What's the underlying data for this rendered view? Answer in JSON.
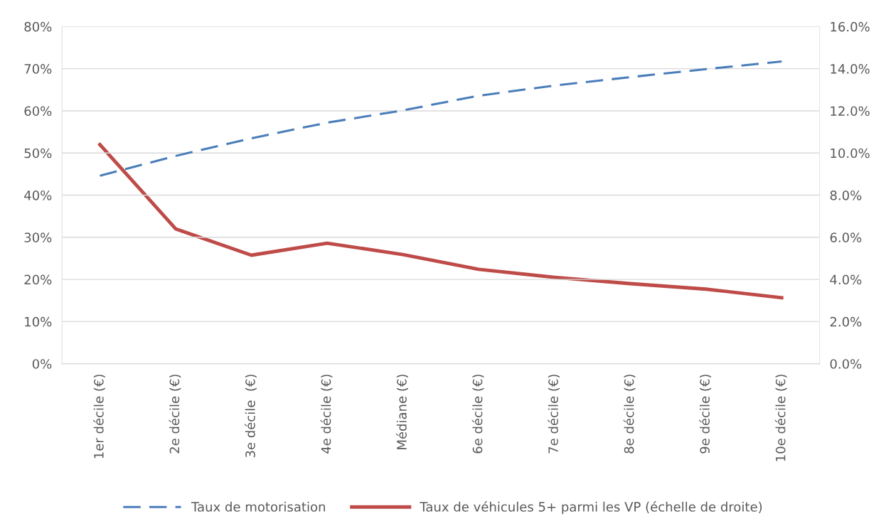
{
  "chart_data": {
    "type": "line",
    "categories": [
      "1er décile (€)",
      "2e décile (€)",
      "3e décile  (€)",
      "4e décile (€)",
      "Médiane (€)",
      "6e décile (€)",
      "7e décile (€)",
      "8e décile (€)",
      "9e décile (€)",
      "10e décile (€)"
    ],
    "series": [
      {
        "name": "Taux de motorisation",
        "color": "#4a7ebb",
        "line_style": "dashed",
        "values": [
          44.6,
          49.3,
          53.5,
          57.2,
          60.1,
          63.6,
          66.0,
          68.0,
          69.9,
          71.7
        ]
      },
      {
        "name": "Taux de véhicules 5+ parmi les VP (échelle de droite)",
        "color": "#be4b48",
        "line_style": "solid",
        "axis": "y2",
        "values": [
          10.4,
          6.4,
          5.15,
          5.72,
          5.18,
          4.48,
          4.1,
          3.8,
          3.54,
          3.13
        ]
      }
    ],
    "ylim": [
      0,
      80
    ],
    "yticks": [
      {
        "value": 0,
        "label": "0%"
      },
      {
        "value": 10,
        "label": "10%"
      },
      {
        "value": 20,
        "label": "20%"
      },
      {
        "value": 30,
        "label": "30%"
      },
      {
        "value": 40,
        "label": "40%"
      },
      {
        "value": 50,
        "label": "50%"
      },
      {
        "value": 60,
        "label": "60%"
      },
      {
        "value": 70,
        "label": "70%"
      },
      {
        "value": 80,
        "label": "80%"
      }
    ],
    "y2lim": [
      0,
      16
    ],
    "y2ticks": [
      {
        "value": 0,
        "label": "0.0%"
      },
      {
        "value": 2,
        "label": "2.0%"
      },
      {
        "value": 4,
        "label": "4.0%"
      },
      {
        "value": 6,
        "label": "6.0%"
      },
      {
        "value": 8,
        "label": "8.0%"
      },
      {
        "value": 10,
        "label": "10.0%"
      },
      {
        "value": 12,
        "label": "12.0%"
      },
      {
        "value": 14,
        "label": "14.0%"
      },
      {
        "value": 16,
        "label": "16.0%"
      }
    ],
    "grid": "y",
    "legend": "bottom",
    "marker": "none"
  }
}
